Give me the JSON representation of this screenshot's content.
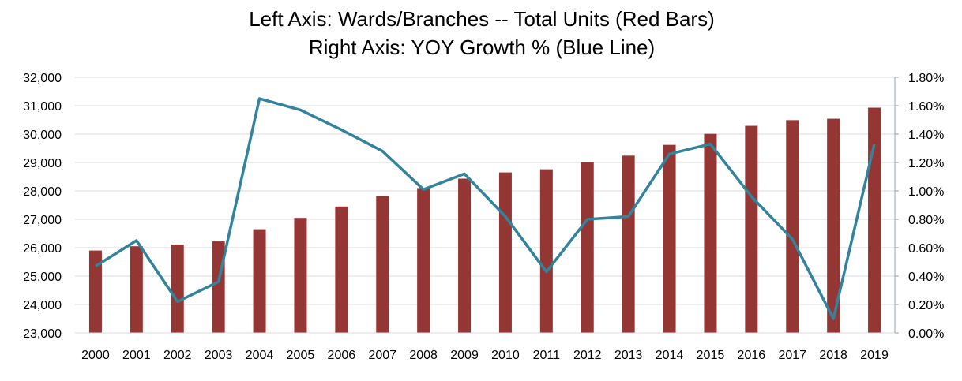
{
  "chart_data": {
    "type": "bar",
    "title_line1": "Left Axis: Wards/Branches -- Total Units (Red Bars)",
    "title_line2": "Right Axis: YOY Growth % (Blue Line)",
    "categories": [
      "2000",
      "2001",
      "2002",
      "2003",
      "2004",
      "2005",
      "2006",
      "2007",
      "2008",
      "2009",
      "2010",
      "2011",
      "2012",
      "2013",
      "2014",
      "2015",
      "2016",
      "2017",
      "2018",
      "2019"
    ],
    "series": [
      {
        "type": "bar",
        "axis": "left",
        "color": "#943634",
        "values": [
          25900,
          26050,
          26110,
          26220,
          26650,
          27050,
          27450,
          27820,
          28100,
          28430,
          28650,
          28760,
          29000,
          29240,
          29620,
          30010,
          30290,
          30490,
          30540,
          30930
        ]
      },
      {
        "type": "line",
        "axis": "right",
        "color": "#31849B",
        "values": [
          0.47,
          0.65,
          0.22,
          0.36,
          1.65,
          1.57,
          1.43,
          1.28,
          1.01,
          1.12,
          0.82,
          0.43,
          0.8,
          0.82,
          1.26,
          1.33,
          0.96,
          0.66,
          0.1,
          1.33
        ]
      }
    ],
    "y_left": {
      "ylim": [
        23000,
        32000
      ],
      "ticks": [
        "23,000",
        "24,000",
        "25,000",
        "26,000",
        "27,000",
        "28,000",
        "29,000",
        "30,000",
        "31,000",
        "32,000"
      ]
    },
    "y_right": {
      "ylim": [
        0,
        1.8
      ],
      "ticks": [
        "0.00%",
        "0.20%",
        "0.40%",
        "0.60%",
        "0.80%",
        "1.00%",
        "1.20%",
        "1.40%",
        "1.60%",
        "1.80%"
      ]
    },
    "grid": true
  }
}
